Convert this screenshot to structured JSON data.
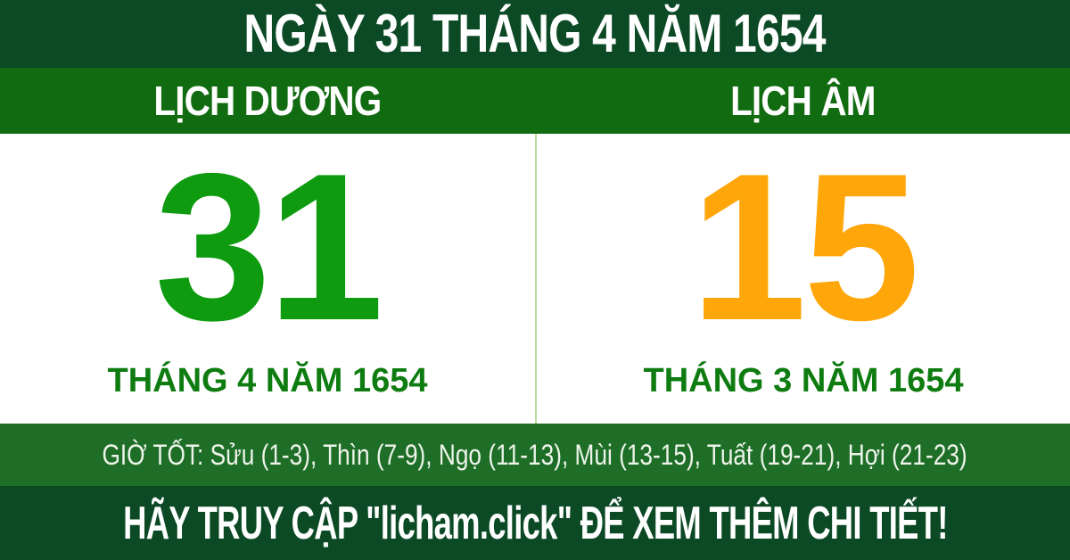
{
  "page": {
    "title": "NGÀY 31 THÁNG 4 NĂM 1654"
  },
  "calendar": {
    "solar": {
      "header": "LỊCH DƯƠNG",
      "day": "31",
      "month_year": "THÁNG 4 NĂM 1654"
    },
    "lunar": {
      "header": "LỊCH ÂM",
      "day": "15",
      "month_year": "THÁNG 3 NĂM 1654"
    }
  },
  "good_hours": {
    "full_text": "GIỜ TỐT: Sửu (1-3), Thìn (7-9), Ngọ (11-13), Mùi (13-15), Tuất (19-21), Hợi (21-23)"
  },
  "footer": {
    "cta_text": "HÃY TRUY CẬP \"licham.click\" ĐỂ XEM THÊM CHI TIẾT!"
  },
  "colors": {
    "dark_green": "#0c4a26",
    "band_green": "#116b10",
    "hours_green": "#1e6e28",
    "solar_day_green": "#0f9b10",
    "label_green": "#0e7c10",
    "lunar_day_orange": "#ffa60a",
    "divider_green": "#b9dc9e",
    "card_white": "#ffffff",
    "text_white": "#ffffff"
  }
}
